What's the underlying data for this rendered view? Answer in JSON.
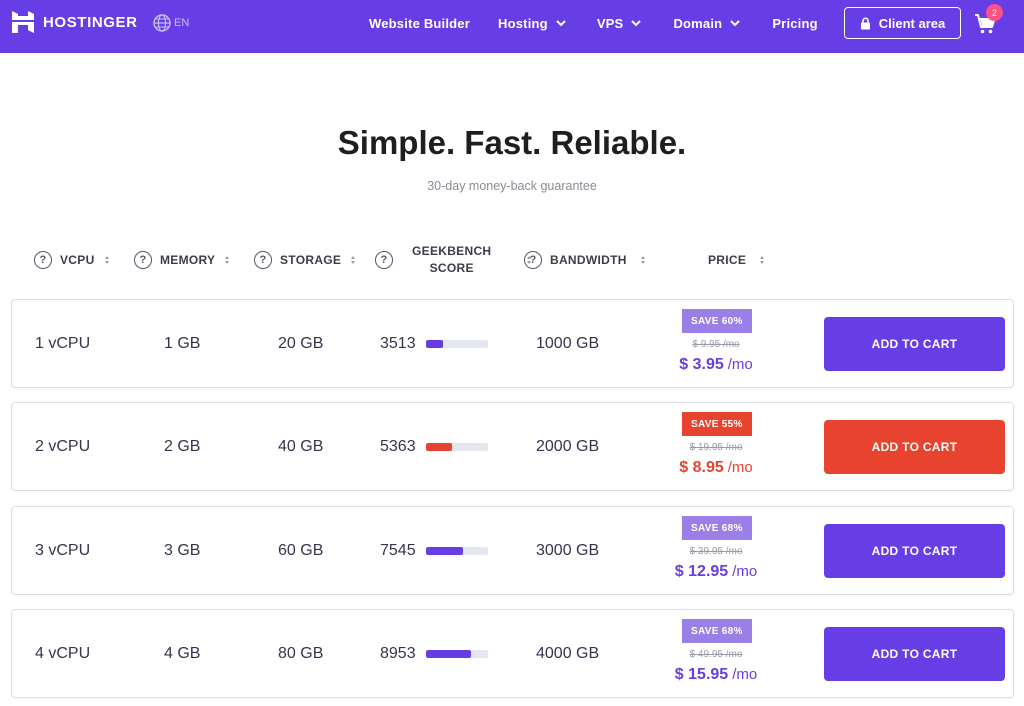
{
  "nav": {
    "logo_text": "HOSTINGER",
    "lang": "EN",
    "links": [
      {
        "label": "Website Builder",
        "has_dropdown": false
      },
      {
        "label": "Hosting",
        "has_dropdown": true
      },
      {
        "label": "VPS",
        "has_dropdown": true
      },
      {
        "label": "Domain",
        "has_dropdown": true
      },
      {
        "label": "Pricing",
        "has_dropdown": false
      }
    ],
    "client_area": "Client area",
    "cart_count": "2"
  },
  "hero": {
    "title": "Simple. Fast. Reliable.",
    "subtitle": "30-day money-back guarantee"
  },
  "table": {
    "headers": {
      "vcpu": "VCPU",
      "memory": "MEMORY",
      "storage": "STORAGE",
      "geekbench_1": "GEEKBENCH",
      "geekbench_2": "SCORE",
      "bandwidth": "BANDWIDTH",
      "price": "PRICE"
    },
    "rows": [
      {
        "vcpu": "1 vCPU",
        "memory": "1 GB",
        "storage": "20 GB",
        "score": "3513",
        "score_fraction": 0.28,
        "bandwidth": "1000 GB",
        "save": "SAVE 60%",
        "old_price": "$ 9.95 /mo",
        "price": "$ 3.95",
        "per": "/mo",
        "cta": "ADD TO CART",
        "accent": "#673de6",
        "badge": "#9a7fe6"
      },
      {
        "vcpu": "2 vCPU",
        "memory": "2 GB",
        "storage": "40 GB",
        "score": "5363",
        "score_fraction": 0.42,
        "bandwidth": "2000 GB",
        "save": "SAVE 55%",
        "old_price": "$ 19.95 /mo",
        "price": "$ 8.95",
        "per": "/mo",
        "cta": "ADD TO CART",
        "accent": "#e8432f",
        "badge": "#e8432f"
      },
      {
        "vcpu": "3 vCPU",
        "memory": "3 GB",
        "storage": "60 GB",
        "score": "7545",
        "score_fraction": 0.61,
        "bandwidth": "3000 GB",
        "save": "SAVE 68%",
        "old_price": "$ 39.95 /mo",
        "price": "$ 12.95",
        "per": "/mo",
        "cta": "ADD TO CART",
        "accent": "#673de6",
        "badge": "#9a7fe6"
      },
      {
        "vcpu": "4 vCPU",
        "memory": "4 GB",
        "storage": "80 GB",
        "score": "8953",
        "score_fraction": 0.74,
        "bandwidth": "4000 GB",
        "save": "SAVE 68%",
        "old_price": "$ 49.95 /mo",
        "price": "$ 15.95",
        "per": "/mo",
        "cta": "ADD TO CART",
        "accent": "#673de6",
        "badge": "#9a7fe6"
      }
    ]
  },
  "colors": {
    "brand": "#673de6",
    "hot": "#e8432f",
    "badge_purple": "#9a7fe6"
  },
  "icons": [
    "hostinger-logo-icon",
    "globe-icon",
    "chevron-down-icon",
    "lock-icon",
    "cart-icon",
    "question-icon",
    "sort-icon"
  ]
}
